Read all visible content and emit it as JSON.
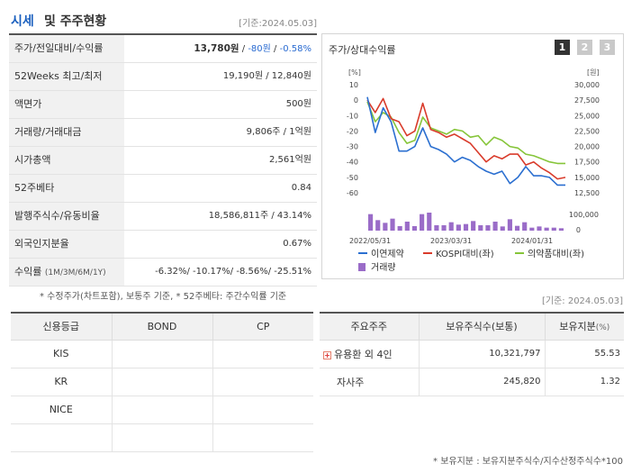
{
  "header": {
    "title_part1": "시세",
    "title_part2": "및 주주현황",
    "date": "[기준:2024.05.03]"
  },
  "quote": {
    "rows": [
      {
        "label": "주가/전일대비/수익률",
        "price": "13,780원",
        "change": "-80원",
        "rate": "-0.58%"
      },
      {
        "label": "52Weeks 최고/최저",
        "value": "19,190원 / 12,840원"
      },
      {
        "label": "액면가",
        "value": "500원"
      },
      {
        "label": "거래량/거래대금",
        "value": "9,806주 / 1억원"
      },
      {
        "label": "시가총액",
        "value": "2,561억원"
      },
      {
        "label": "52주베타",
        "value": "0.84"
      },
      {
        "label": "발행주식수/유동비율",
        "value": "18,586,811주 / 43.14%"
      },
      {
        "label": "외국인지분율",
        "value": "0.67%"
      },
      {
        "label": "수익률",
        "label_small": "(1M/3M/6M/1Y)",
        "returns": "-6.32%/ -10.17%/ -8.56%/ -25.51%"
      }
    ],
    "note": "* 수정주가(차트포함), 보통주 기준, * 52주베타: 주간수익률 기준"
  },
  "chart": {
    "title": "주가/상대수익률",
    "tabs": [
      "1",
      "2",
      "3"
    ],
    "active_tab": "1"
  },
  "chart_data": {
    "type": "line",
    "ylabel_left": "[%]",
    "ylabel_right": "[원]",
    "y_left_ticks": [
      "10",
      "0",
      "-10",
      "-20",
      "-30",
      "-40",
      "-50",
      "-60"
    ],
    "y_right_ticks": [
      "30,000",
      "27,500",
      "25,000",
      "22,500",
      "20,000",
      "17,500",
      "15,000",
      "12,500"
    ],
    "volume_ticks": [
      "100,000",
      "0"
    ],
    "x_ticks": [
      "2022/05/31",
      "2023/03/31",
      "2024/01/31"
    ],
    "ylim_left": [
      -60,
      10
    ],
    "ylim_right": [
      12500,
      30000
    ],
    "series": [
      {
        "name": "이연제약",
        "color": "#2b6fd0",
        "values": [
          2,
          -21,
          -5,
          -14,
          -33,
          -33,
          -30,
          -18,
          -30,
          -32,
          -35,
          -40,
          -37,
          -39,
          -43,
          -46,
          -48,
          -46,
          -54,
          -50,
          -43,
          -49,
          -49,
          -50,
          -55,
          -55
        ]
      },
      {
        "name": "KOSPI대비(좌)",
        "color": "#d93b2b",
        "values": [
          0,
          -8,
          1,
          -12,
          -14,
          -23,
          -20,
          -2,
          -19,
          -21,
          -24,
          -22,
          -25,
          -28,
          -34,
          -40,
          -36,
          -38,
          -35,
          -35,
          -42,
          -40,
          -44,
          -47,
          -51,
          -50
        ]
      },
      {
        "name": "의약품대비(좌)",
        "color": "#86c53a",
        "values": [
          -1,
          -14,
          -8,
          -11,
          -21,
          -28,
          -26,
          -11,
          -18,
          -20,
          -22,
          -19,
          -20,
          -24,
          -23,
          -29,
          -24,
          -26,
          -30,
          -31,
          -35,
          -36,
          -38,
          -40,
          -41,
          -41
        ]
      }
    ],
    "volume": {
      "name": "거래량",
      "color": "#9a6cc8",
      "values": [
        55,
        35,
        26,
        40,
        15,
        30,
        15,
        55,
        60,
        18,
        18,
        28,
        20,
        22,
        32,
        18,
        18,
        30,
        14,
        38,
        16,
        28,
        10,
        14,
        10,
        10,
        8
      ]
    }
  },
  "date2": "[기준: 2024.05.03]",
  "credit": {
    "headers": [
      "신용등급",
      "BOND",
      "CP"
    ],
    "rows": [
      [
        "KIS",
        "",
        ""
      ],
      [
        "KR",
        "",
        ""
      ],
      [
        "NICE",
        "",
        ""
      ],
      [
        "",
        "",
        ""
      ]
    ]
  },
  "holders": {
    "headers": [
      "주요주주",
      "보유주식수(보통)",
      "보유지분",
      "(%)"
    ],
    "rows": [
      {
        "name": "유용환 외 4인",
        "shares": "10,321,797",
        "ratio": "55.53",
        "expandable": true
      },
      {
        "name": "자사주",
        "shares": "245,820",
        "ratio": "1.32",
        "expandable": false
      }
    ]
  },
  "note2": "* 보유지분 : 보유지분주식수/지수산정주식수*100"
}
